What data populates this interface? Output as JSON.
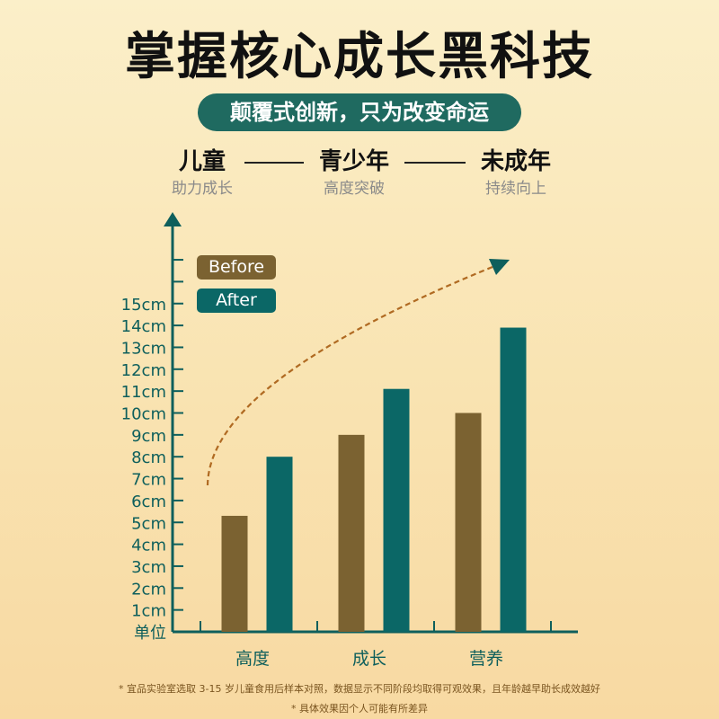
{
  "header": {
    "title": "掌握核心成长黑科技",
    "subtitle": "颠覆式创新，只为改变命运"
  },
  "stages": [
    {
      "name": "儿童",
      "sub": "助力成长"
    },
    {
      "name": "青少年",
      "sub": "高度突破"
    },
    {
      "name": "未成年",
      "sub": "持续向上"
    }
  ],
  "colors": {
    "before": "#7b6231",
    "after": "#0b6766",
    "axis": "#0e5f5c",
    "trend": "#b06a22"
  },
  "chart_data": {
    "type": "bar",
    "categories": [
      "高度",
      "成长",
      "营养"
    ],
    "series": [
      {
        "name": "Before",
        "values": [
          5.3,
          9.0,
          10.0
        ]
      },
      {
        "name": "After",
        "values": [
          8.0,
          11.1,
          13.9
        ]
      }
    ],
    "ylim": [
      0,
      15
    ],
    "y_ticks": [
      "单位",
      "1cm",
      "2cm",
      "3cm",
      "4cm",
      "5cm",
      "6cm",
      "7cm",
      "8cm",
      "9cm",
      "10cm",
      "11cm",
      "12cm",
      "13cm",
      "14cm",
      "15cm"
    ],
    "legend": [
      "Before",
      "After"
    ],
    "legend_position": "top-left",
    "trend_arrow": "dashed, upward",
    "grid": false
  },
  "footnotes": [
    "* 宜品实验室选取 3-15 岁儿童食用后样本对照，数据显示不同阶段均取得可观效果，且年龄越早助长成效越好",
    "* 具体效果因个人可能有所差异"
  ]
}
